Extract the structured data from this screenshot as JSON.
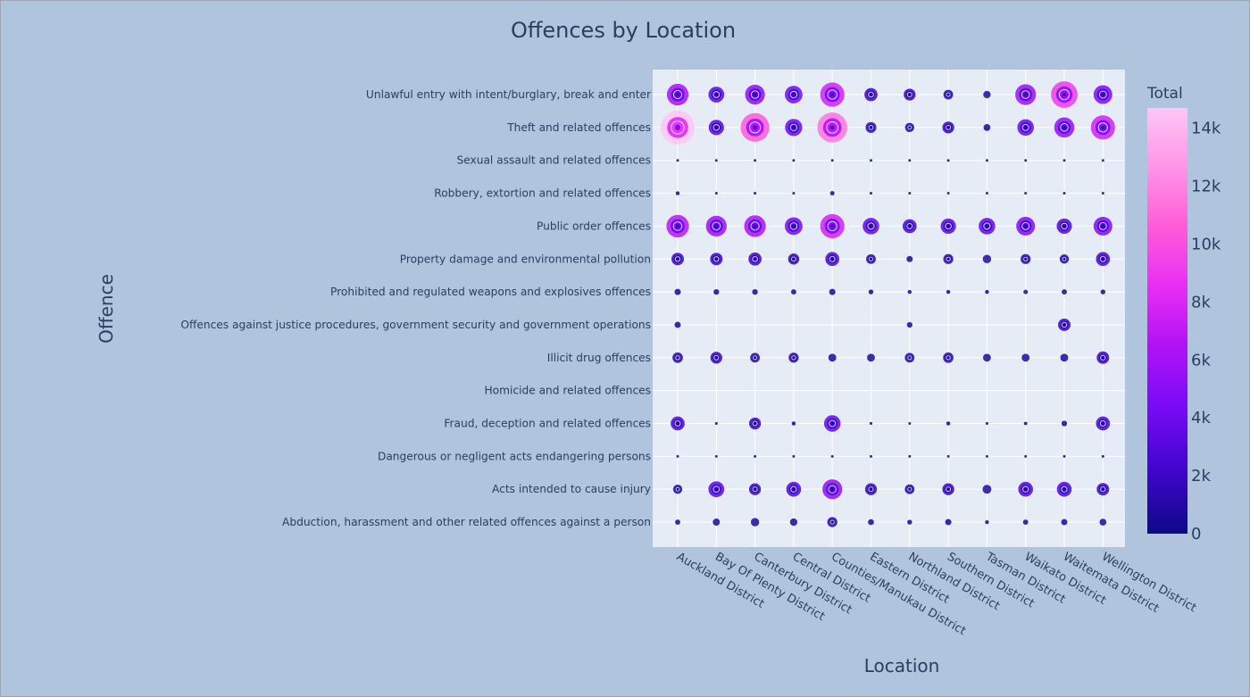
{
  "chart_data": {
    "type": "scatter",
    "subtype": "bubble",
    "title": "Offences by Location",
    "xlabel": "Location",
    "ylabel": "Offence",
    "colorbar": {
      "title": "Total",
      "range": [
        0,
        14700
      ],
      "ticks": [
        0,
        2000,
        4000,
        6000,
        8000,
        10000,
        12000,
        14000
      ],
      "tick_labels": [
        "0",
        "2k",
        "4k",
        "6k",
        "8k",
        "10k",
        "12k",
        "14k"
      ],
      "colors": [
        "#0d0887",
        "#3d05c9",
        "#7a0af7",
        "#b513f5",
        "#e82ef5",
        "#ff5bd8",
        "#ff94e7",
        "#ffc6f7"
      ]
    },
    "categories": [
      "Auckland District",
      "Bay Of Plenty District",
      "Canterbury District",
      "Central District",
      "Counties/Manukau District",
      "Eastern District",
      "Northland District",
      "Southern District",
      "Tasman District",
      "Waikato District",
      "Waitemata District",
      "Wellington District"
    ],
    "offences": [
      "Unlawful entry with intent/burglary, break and enter",
      "Theft and related offences",
      "Sexual assault and related offences",
      "Robbery, extortion and related offences",
      "Public order offences",
      "Property damage and environmental pollution",
      "Prohibited and regulated weapons and explosives offences",
      "Offences against justice procedures, government security and government operations",
      "Illicit drug offences",
      "Homicide and related offences",
      "Fraud, deception and related offences",
      "Dangerous or negligent acts endangering persons",
      "Acts intended to cause injury",
      "Abduction, harassment and other related offences against a person"
    ],
    "values": [
      [
        6000,
        3200,
        5000,
        4000,
        7500,
        2200,
        1800,
        1200,
        700,
        5500,
        9000,
        4500
      ],
      [
        14700,
        3000,
        10500,
        3800,
        11500,
        1500,
        1100,
        1800,
        600,
        3500,
        5200,
        7500
      ],
      [
        60,
        60,
        60,
        60,
        80,
        60,
        40,
        60,
        40,
        60,
        60,
        60
      ],
      [
        200,
        60,
        100,
        60,
        250,
        40,
        40,
        40,
        40,
        40,
        80,
        60
      ],
      [
        6500,
        5500,
        6000,
        4000,
        7500,
        3500,
        2500,
        3000,
        3500,
        4500,
        3000,
        4500
      ],
      [
        2000,
        2000,
        2200,
        1600,
        2500,
        1200,
        500,
        1300,
        900,
        1300,
        1100,
        2500
      ],
      [
        500,
        400,
        400,
        350,
        500,
        300,
        200,
        200,
        200,
        250,
        350,
        300
      ],
      [
        500,
        0,
        0,
        0,
        0,
        0,
        400,
        0,
        0,
        0,
        2000,
        0
      ],
      [
        1400,
        1800,
        1200,
        1300,
        800,
        800,
        1200,
        1400,
        800,
        800,
        800,
        2000
      ],
      [
        0,
        0,
        0,
        0,
        0,
        0,
        0,
        0,
        0,
        0,
        0,
        0
      ],
      [
        2500,
        100,
        1800,
        200,
        3500,
        100,
        80,
        200,
        100,
        150,
        400,
        2500
      ],
      [
        30,
        30,
        30,
        30,
        30,
        30,
        30,
        60,
        30,
        30,
        30,
        30
      ],
      [
        1100,
        3200,
        1800,
        2800,
        5000,
        1800,
        1200,
        1800,
        1000,
        2800,
        2800,
        2000
      ],
      [
        350,
        650,
        900,
        700,
        1300,
        450,
        300,
        500,
        200,
        350,
        500,
        600
      ]
    ]
  }
}
